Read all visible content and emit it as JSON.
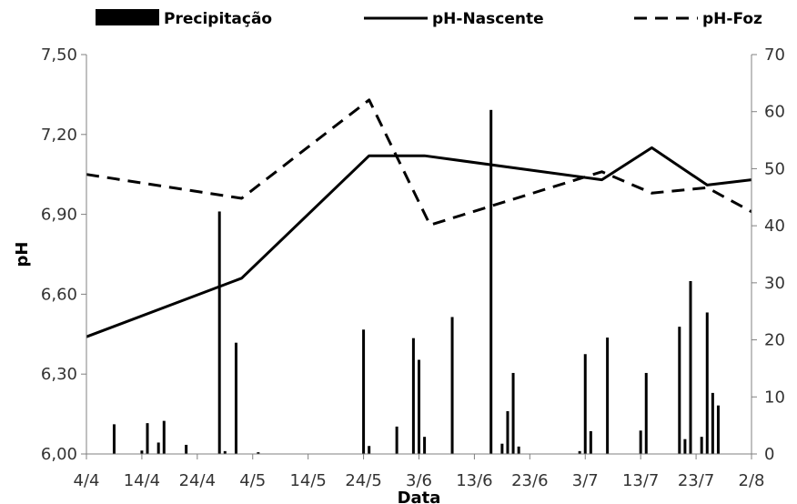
{
  "chart_data": {
    "type": "bar+line",
    "title": "",
    "xlabel": "Data",
    "ylabel": "pH",
    "ylabel_right": "",
    "x_ticks": [
      "4/4",
      "14/4",
      "24/4",
      "4/5",
      "14/5",
      "24/5",
      "3/6",
      "13/6",
      "23/6",
      "3/7",
      "13/7",
      "23/7",
      "2/8"
    ],
    "y_ticks": [
      "6,00",
      "6,30",
      "6,60",
      "6,90",
      "7,20",
      "7,50"
    ],
    "y2_ticks": [
      "0",
      "10",
      "20",
      "30",
      "40",
      "50",
      "60",
      "70"
    ],
    "ylim": [
      6.0,
      7.5
    ],
    "y2lim": [
      0,
      70
    ],
    "x_range_days": [
      0,
      120
    ],
    "legend": {
      "placement": "top",
      "entries": [
        {
          "label": "Precipitação",
          "style": "bar",
          "color": "#000000"
        },
        {
          "label": "pH-Nascente",
          "style": "solid",
          "color": "#000000"
        },
        {
          "label": "pH-Foz",
          "style": "dashed",
          "color": "#000000"
        }
      ]
    },
    "series": [
      {
        "name": "pH-Nascente",
        "axis": "left",
        "style": "solid",
        "points": [
          {
            "x": "4/4",
            "y": 6.44
          },
          {
            "x": "2/5",
            "y": 6.66
          },
          {
            "x": "25/5",
            "y": 7.12
          },
          {
            "x": "4/6",
            "y": 7.12
          },
          {
            "x": "6/7",
            "y": 7.03
          },
          {
            "x": "15/7",
            "y": 7.15
          },
          {
            "x": "25/7",
            "y": 7.01
          },
          {
            "x": "2/8",
            "y": 7.03
          }
        ]
      },
      {
        "name": "pH-Foz",
        "axis": "left",
        "style": "dashed",
        "points": [
          {
            "x": "4/4",
            "y": 7.05
          },
          {
            "x": "2/5",
            "y": 6.96
          },
          {
            "x": "25/5",
            "y": 7.33
          },
          {
            "x": "5/6",
            "y": 6.86
          },
          {
            "x": "6/7",
            "y": 7.06
          },
          {
            "x": "15/7",
            "y": 6.98
          },
          {
            "x": "25/7",
            "y": 7.0
          },
          {
            "x": "2/8",
            "y": 6.91
          }
        ]
      },
      {
        "name": "Precipitação",
        "axis": "right",
        "style": "bar",
        "points": [
          {
            "x": "9/4",
            "y": 5.2
          },
          {
            "x": "14/4",
            "y": 0.6
          },
          {
            "x": "15/4",
            "y": 5.4
          },
          {
            "x": "17/4",
            "y": 2.0
          },
          {
            "x": "18/4",
            "y": 5.8
          },
          {
            "x": "22/4",
            "y": 1.6
          },
          {
            "x": "28/4",
            "y": 42.5
          },
          {
            "x": "29/4",
            "y": 0.5
          },
          {
            "x": "1/5",
            "y": 19.5
          },
          {
            "x": "5/5",
            "y": 0.3
          },
          {
            "x": "24/5",
            "y": 21.8
          },
          {
            "x": "25/5",
            "y": 1.4
          },
          {
            "x": "30/5",
            "y": 4.8
          },
          {
            "x": "2/6",
            "y": 20.3
          },
          {
            "x": "3/6",
            "y": 16.5
          },
          {
            "x": "4/6",
            "y": 3.0
          },
          {
            "x": "9/6",
            "y": 24.0
          },
          {
            "x": "16/6",
            "y": 60.3
          },
          {
            "x": "18/6",
            "y": 1.8
          },
          {
            "x": "19/6",
            "y": 7.5
          },
          {
            "x": "20/6",
            "y": 14.2
          },
          {
            "x": "21/6",
            "y": 1.3
          },
          {
            "x": "2/7",
            "y": 0.5
          },
          {
            "x": "3/7",
            "y": 17.5
          },
          {
            "x": "4/7",
            "y": 4.0
          },
          {
            "x": "7/7",
            "y": 20.4
          },
          {
            "x": "13/7",
            "y": 4.1
          },
          {
            "x": "14/7",
            "y": 14.2
          },
          {
            "x": "20/7",
            "y": 22.3
          },
          {
            "x": "21/7",
            "y": 2.6
          },
          {
            "x": "22/7",
            "y": 30.3
          },
          {
            "x": "24/7",
            "y": 3.0
          },
          {
            "x": "25/7",
            "y": 24.8
          },
          {
            "x": "26/7",
            "y": 10.7
          },
          {
            "x": "27/7",
            "y": 8.5
          }
        ]
      }
    ]
  }
}
